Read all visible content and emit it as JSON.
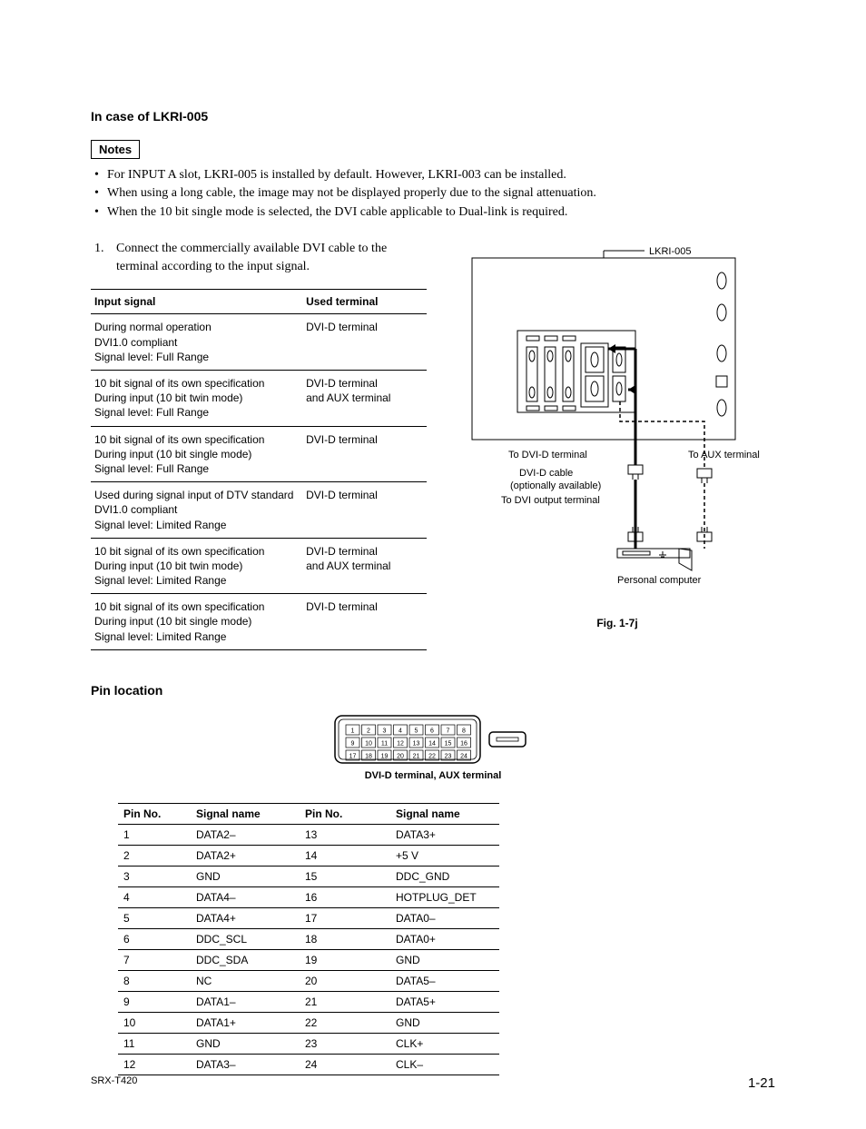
{
  "heading": "In case of LKRI-005",
  "notes_label": "Notes",
  "notes": [
    "For INPUT A slot, LKRI-005 is installed by default.  However, LKRI-003 can be installed.",
    "When using a long cable, the image may not be displayed properly due to the signal attenuation.",
    "When the 10 bit single mode is selected, the DVI cable applicable to Dual-link is required."
  ],
  "step1_num": "1.",
  "step1_text": "Connect the commercially available DVI cable to the terminal according to the input signal.",
  "sig_table": {
    "headers": [
      "Input signal",
      "Used terminal"
    ],
    "rows": [
      [
        "During normal operation\nDVI1.0 compliant\nSignal level: Full Range",
        "DVI-D terminal"
      ],
      [
        "10 bit signal of its own specification\nDuring input (10 bit twin mode)\nSignal level: Full Range",
        "DVI-D terminal\nand AUX terminal"
      ],
      [
        "10 bit signal of its own specification\nDuring input (10 bit single mode)\nSignal level: Full Range",
        "DVI-D terminal"
      ],
      [
        "Used during signal input of DTV standard\nDVI1.0 compliant\nSignal level: Limited Range",
        "DVI-D terminal"
      ],
      [
        "10 bit signal of its own specification\nDuring input (10 bit twin mode)\nSignal level: Limited Range",
        "DVI-D terminal\nand AUX terminal"
      ],
      [
        "10 bit signal of its own specification\nDuring input (10 bit single mode)\nSignal level: Limited Range",
        "DVI-D terminal"
      ]
    ]
  },
  "diagram": {
    "label_device": "LKRI-005",
    "label_to_dvid": "To DVI-D terminal",
    "label_to_aux": "To AUX terminal",
    "label_cable": "DVI-D cable",
    "label_optional": "(optionally available)",
    "label_to_dvi_out": "To DVI output terminal",
    "label_pc": "Personal computer",
    "caption": "Fig. 1-7j"
  },
  "pin_section_title": "Pin location",
  "connector": {
    "rows": [
      [
        "1",
        "2",
        "3",
        "4",
        "5",
        "6",
        "7",
        "8"
      ],
      [
        "9",
        "10",
        "11",
        "12",
        "13",
        "14",
        "15",
        "16"
      ],
      [
        "17",
        "18",
        "19",
        "20",
        "21",
        "22",
        "23",
        "24"
      ]
    ],
    "caption": "DVI-D terminal, AUX terminal"
  },
  "pin_table": {
    "headers": [
      "Pin No.",
      "Signal name",
      "Pin No.",
      "Signal name"
    ],
    "rows": [
      [
        "1",
        "DATA2–",
        "13",
        "DATA3+"
      ],
      [
        "2",
        "DATA2+",
        "14",
        "+5 V"
      ],
      [
        "3",
        "GND",
        "15",
        "DDC_GND"
      ],
      [
        "4",
        "DATA4–",
        "16",
        "HOTPLUG_DET"
      ],
      [
        "5",
        "DATA4+",
        "17",
        "DATA0–"
      ],
      [
        "6",
        "DDC_SCL",
        "18",
        "DATA0+"
      ],
      [
        "7",
        "DDC_SDA",
        "19",
        "GND"
      ],
      [
        "8",
        "NC",
        "20",
        "DATA5–"
      ],
      [
        "9",
        "DATA1–",
        "21",
        "DATA5+"
      ],
      [
        "10",
        "DATA1+",
        "22",
        "GND"
      ],
      [
        "11",
        "GND",
        "23",
        "CLK+"
      ],
      [
        "12",
        "DATA3–",
        "24",
        "CLK–"
      ]
    ]
  },
  "footer": {
    "model": "SRX-T420",
    "page": "1-21"
  },
  "style": {
    "bg": "#ffffff",
    "text": "#000000",
    "stroke": "#000000",
    "thin_stroke_w": 1,
    "thick_stroke_w": 2.5,
    "font_sans": "Arial",
    "font_serif": "Times New Roman"
  }
}
